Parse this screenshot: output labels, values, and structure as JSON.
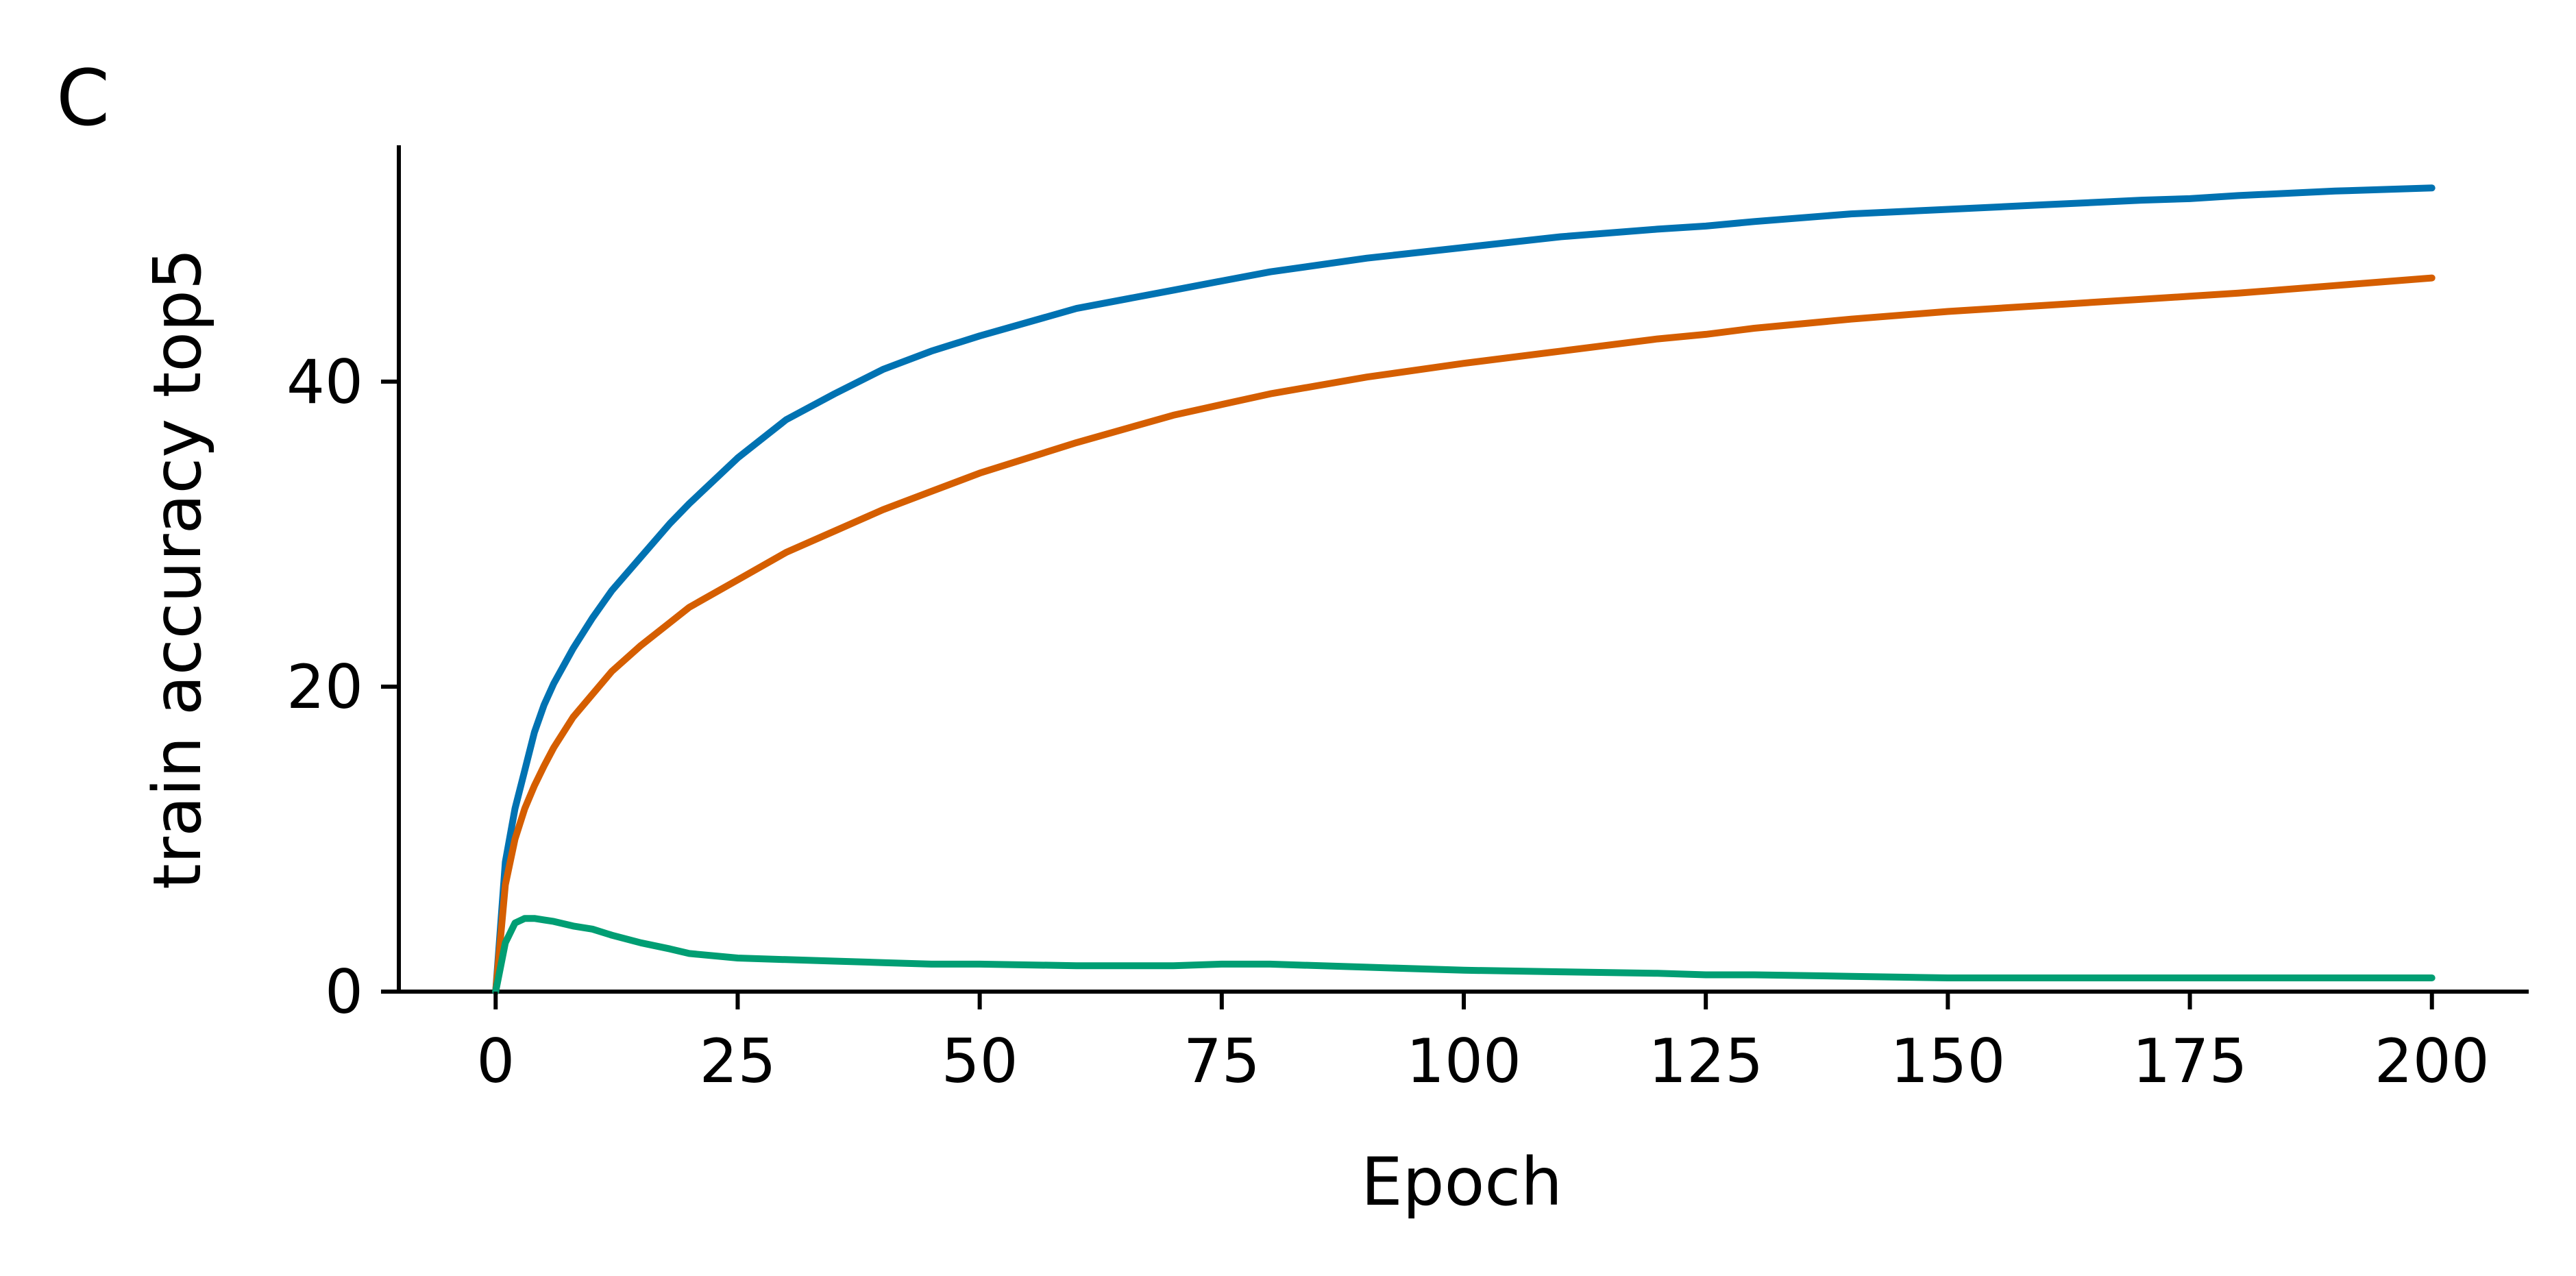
{
  "panel_label": "C",
  "chart_data": {
    "type": "line",
    "title": "",
    "xlabel": "Epoch",
    "ylabel": "train accuracy top5",
    "xlim": [
      -10,
      210
    ],
    "ylim": [
      0,
      55.5
    ],
    "xticks": [
      0,
      25,
      50,
      75,
      100,
      125,
      150,
      175,
      200
    ],
    "xtick_labels": [
      "0",
      "25",
      "50",
      "75",
      "100",
      "125",
      "150",
      "175",
      "200"
    ],
    "yticks": [
      0,
      20,
      40
    ],
    "ytick_labels": [
      "0",
      "20",
      "40"
    ],
    "grid": false,
    "legend": "none",
    "x": [
      0,
      1,
      2,
      3,
      4,
      5,
      6,
      8,
      10,
      12,
      15,
      18,
      20,
      25,
      30,
      35,
      40,
      45,
      50,
      60,
      70,
      75,
      80,
      90,
      100,
      110,
      120,
      125,
      130,
      140,
      150,
      160,
      170,
      175,
      180,
      190,
      200
    ],
    "series": [
      {
        "color": "#0072B2",
        "values": [
          0,
          8.5,
          12.0,
          14.5,
          17.0,
          18.8,
          20.2,
          22.5,
          24.5,
          26.3,
          28.5,
          30.7,
          32.0,
          35.0,
          37.5,
          39.2,
          40.8,
          42.0,
          43.0,
          44.8,
          46.0,
          46.6,
          47.2,
          48.1,
          48.8,
          49.5,
          50.0,
          50.2,
          50.5,
          51.0,
          51.3,
          51.6,
          51.9,
          52.0,
          52.2,
          52.5,
          52.7
        ]
      },
      {
        "color": "#D55E00",
        "values": [
          0,
          7.0,
          10.0,
          12.0,
          13.5,
          14.8,
          16.0,
          18.0,
          19.5,
          21.0,
          22.7,
          24.2,
          25.2,
          27.0,
          28.8,
          30.2,
          31.6,
          32.8,
          34.0,
          36.0,
          37.8,
          38.5,
          39.2,
          40.3,
          41.2,
          42.0,
          42.8,
          43.1,
          43.5,
          44.1,
          44.6,
          45.0,
          45.4,
          45.6,
          45.8,
          46.3,
          46.8
        ]
      },
      {
        "color": "#009E73",
        "values": [
          0,
          3.2,
          4.5,
          4.8,
          4.8,
          4.7,
          4.6,
          4.3,
          4.1,
          3.7,
          3.2,
          2.8,
          2.5,
          2.2,
          2.1,
          2.0,
          1.9,
          1.8,
          1.8,
          1.7,
          1.7,
          1.8,
          1.8,
          1.6,
          1.4,
          1.3,
          1.2,
          1.1,
          1.1,
          1.0,
          0.9,
          0.9,
          0.9,
          0.9,
          0.9,
          0.9,
          0.9
        ]
      }
    ]
  }
}
